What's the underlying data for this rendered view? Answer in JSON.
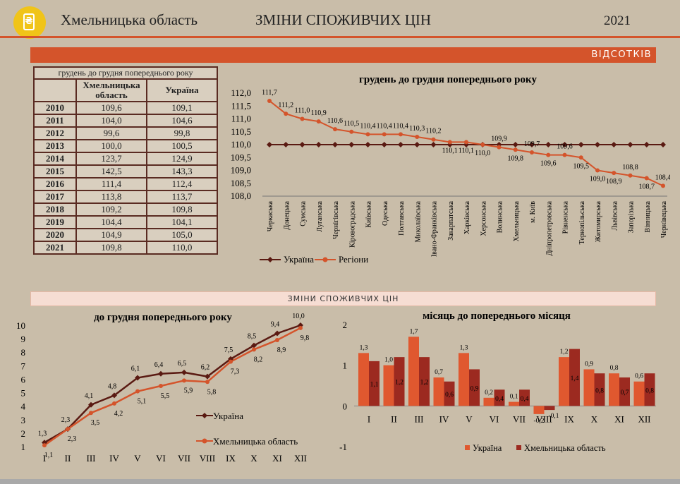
{
  "header": {
    "region": "Хмельницька область",
    "title": "ЗМІНИ СПОЖИВЧИХ ЦІН",
    "year": "2021"
  },
  "band_top": "ВІДСОТКІВ",
  "band_mid": "ЗМІНИ СПОЖИВЧИХ ЦІН",
  "colors": {
    "ukraine": "#5a1a12",
    "region": "#d4542b",
    "band": "#d4542b",
    "bar_ukraine": "#e0582f",
    "bar_region": "#9c2a20"
  },
  "table": {
    "caption": "грудень до грудня попереднього року",
    "col_region": "Хмельницька область",
    "col_ukraine": "Україна",
    "rows": [
      {
        "year": "2010",
        "region": "109,6",
        "ukraine": "109,1"
      },
      {
        "year": "2011",
        "region": "104,0",
        "ukraine": "104,6"
      },
      {
        "year": "2012",
        "region": "99,6",
        "ukraine": "99,8"
      },
      {
        "year": "2013",
        "region": "100,0",
        "ukraine": "100,5"
      },
      {
        "year": "2014",
        "region": "123,7",
        "ukraine": "124,9"
      },
      {
        "year": "2015",
        "region": "142,5",
        "ukraine": "143,3"
      },
      {
        "year": "2016",
        "region": "111,4",
        "ukraine": "112,4"
      },
      {
        "year": "2017",
        "region": "113,8",
        "ukraine": "113,7"
      },
      {
        "year": "2018",
        "region": "109,2",
        "ukraine": "109,8"
      },
      {
        "year": "2019",
        "region": "104,4",
        "ukraine": "104,1"
      },
      {
        "year": "2020",
        "region": "104,9",
        "ukraine": "105,0"
      },
      {
        "year": "2021",
        "region": "109,8",
        "ukraine": "110,0"
      }
    ]
  },
  "chart_data": [
    {
      "type": "line",
      "title": "грудень до грудня попереднього року",
      "categories": [
        "Черкаська",
        "Донецька",
        "Сумська",
        "Луганська",
        "Чернігівська",
        "Кіровоградська",
        "Київська",
        "Одеська",
        "Полтавська",
        "Миколаївська",
        "Івано-Франківська",
        "Закарпатська",
        "Харківська",
        "Херсонська",
        "Волинська",
        "Хмельницька",
        "м. Київ",
        "Дніпропетровська",
        "Рівненська",
        "Тернопільська",
        "Житомирська",
        "Львівська",
        "Запорізька",
        "Вінницька",
        "Чернівецька"
      ],
      "series": [
        {
          "name": "Україна",
          "values": [
            110.0,
            110.0,
            110.0,
            110.0,
            110.0,
            110.0,
            110.0,
            110.0,
            110.0,
            110.0,
            110.0,
            110.0,
            110.0,
            110.0,
            110.0,
            110.0,
            110.0,
            110.0,
            110.0,
            110.0,
            110.0,
            110.0,
            110.0,
            110.0,
            110.0
          ]
        },
        {
          "name": "Регіони",
          "values": [
            111.7,
            111.2,
            111.0,
            110.9,
            110.6,
            110.5,
            110.4,
            110.4,
            110.4,
            110.3,
            110.2,
            110.1,
            110.1,
            110.0,
            109.9,
            109.8,
            109.7,
            109.6,
            109.6,
            109.5,
            109.0,
            108.9,
            108.8,
            108.7,
            108.4
          ]
        }
      ],
      "data_labels": [
        "111,7",
        "111,2",
        "111,0",
        "110,9",
        "110,6",
        "110,5",
        "110,4",
        "110,4",
        "110,4",
        "110,3",
        "110,2",
        "110,1",
        "110,1",
        "110,0",
        "109,9",
        "109,8",
        "109,7",
        "109,6",
        "109,6",
        "109,5",
        "109,0",
        "108,9",
        "108,8",
        "108,7",
        "108,4"
      ],
      "yticks": [
        "112,0",
        "111,5",
        "111,0",
        "110,5",
        "110,0",
        "109,5",
        "109,0",
        "108,5",
        "108,0"
      ],
      "ylim": [
        108.0,
        112.0
      ],
      "legend": "bottom"
    },
    {
      "type": "line",
      "title": "до грудня попереднього року",
      "categories": [
        "I",
        "II",
        "III",
        "IV",
        "V",
        "VI",
        "VII",
        "VIII",
        "IX",
        "X",
        "XI",
        "XII"
      ],
      "series": [
        {
          "name": "Україна",
          "values": [
            1.3,
            2.3,
            4.1,
            4.8,
            6.1,
            6.4,
            6.5,
            6.2,
            7.5,
            8.5,
            9.4,
            10.0
          ],
          "labels": [
            "1,3",
            "2,3",
            "4,1",
            "4,8",
            "6,1",
            "6,4",
            "6,5",
            "6,2",
            "7,5",
            "8,5",
            "9,4",
            "10,0"
          ]
        },
        {
          "name": "Хмельницька область",
          "values": [
            1.1,
            2.3,
            3.5,
            4.2,
            5.1,
            5.5,
            5.9,
            5.8,
            7.3,
            8.2,
            8.9,
            9.8
          ],
          "labels": [
            "1,1",
            "2,3",
            "3,5",
            "4,2",
            "5,1",
            "5,5",
            "5,9",
            "5,8",
            "7,3",
            "8,2",
            "8,9",
            "9,8"
          ]
        }
      ],
      "yticks": [
        "10",
        "9",
        "8",
        "7",
        "6",
        "5",
        "4",
        "3",
        "2",
        "1"
      ],
      "ylim": [
        1,
        10
      ],
      "legend": "right"
    },
    {
      "type": "bar",
      "title": "місяць до попереднього місяця",
      "categories": [
        "I",
        "II",
        "III",
        "IV",
        "V",
        "VI",
        "VII",
        "VIII",
        "IX",
        "X",
        "XI",
        "XII"
      ],
      "series": [
        {
          "name": "Україна",
          "values": [
            1.3,
            1.0,
            1.7,
            0.7,
            1.3,
            0.2,
            0.1,
            -0.2,
            1.2,
            0.9,
            0.8,
            0.6
          ],
          "labels": [
            "1,3",
            "1,0",
            "1,7",
            "0,7",
            "1,3",
            "0,2",
            "0,1",
            "-0,2",
            "1,2",
            "0,9",
            "0,8",
            "0,6"
          ]
        },
        {
          "name": "Хмельницька область",
          "values": [
            1.1,
            1.2,
            1.2,
            0.6,
            0.9,
            0.4,
            0.4,
            -0.1,
            1.4,
            0.8,
            0.7,
            0.8
          ],
          "labels": [
            "1,1",
            "1,2",
            "1,2",
            "0,6",
            "0,9",
            "0,4",
            "0,4",
            "-0,1",
            "1,4",
            "0,8",
            "0,7",
            "0,8"
          ]
        }
      ],
      "yticks": [
        "2",
        "1",
        "0",
        "-1"
      ],
      "ylim": [
        -1,
        2
      ],
      "legend": "bottom"
    }
  ]
}
